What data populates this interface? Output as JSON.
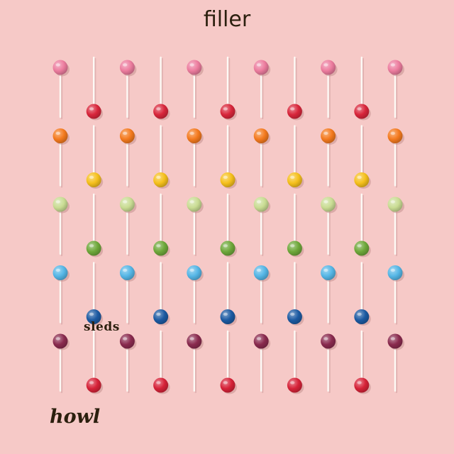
{
  "captions": {
    "title": "filler",
    "middle": "sleds",
    "bottom": "howl"
  },
  "scene": {
    "background_color": "#f6c9c7",
    "subject": "lollipops",
    "grid": {
      "rows": 5,
      "columns": 11
    },
    "candy_colors": [
      {
        "down": "#ec7c9e",
        "up": "#d8263b"
      },
      {
        "down": "#f47a1e",
        "up": "#f5c01c"
      },
      {
        "down": "#c9dc93",
        "up": "#6ea83a"
      },
      {
        "down": "#55b6e6",
        "up": "#1c5aa2"
      },
      {
        "down": "#8a2a4e",
        "up": "#d62238"
      }
    ]
  }
}
